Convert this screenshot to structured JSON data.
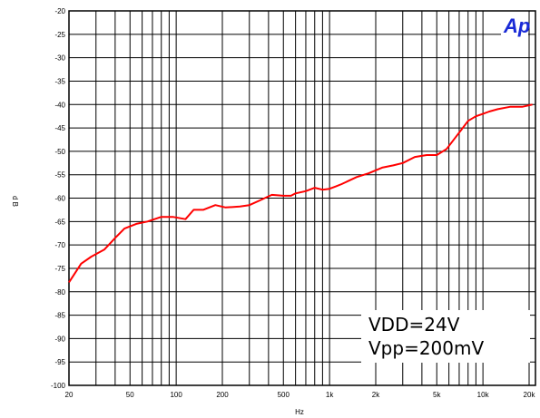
{
  "chart_data": {
    "type": "line",
    "xscale": "log",
    "xlim": [
      20,
      22000
    ],
    "ylim": [
      -100,
      -20
    ],
    "xlabel": "Hz",
    "ylabel": "d B",
    "x_ticks": [
      {
        "value": 20,
        "label": "20"
      },
      {
        "value": 50,
        "label": "50"
      },
      {
        "value": 100,
        "label": "100"
      },
      {
        "value": 200,
        "label": "200"
      },
      {
        "value": 500,
        "label": "500"
      },
      {
        "value": 1000,
        "label": "1k"
      },
      {
        "value": 2000,
        "label": "2k"
      },
      {
        "value": 5000,
        "label": "5k"
      },
      {
        "value": 10000,
        "label": "10k"
      },
      {
        "value": 20000,
        "label": "20k"
      }
    ],
    "y_ticks": [
      -20,
      -25,
      -30,
      -35,
      -40,
      -45,
      -50,
      -55,
      -60,
      -65,
      -70,
      -75,
      -80,
      -85,
      -90,
      -95,
      -100
    ],
    "grid": true,
    "series": [
      {
        "color": "#ff0000",
        "x": [
          20,
          24,
          28,
          34,
          40,
          46,
          55,
          65,
          80,
          95,
          115,
          130,
          150,
          180,
          210,
          260,
          300,
          350,
          420,
          500,
          560,
          600,
          700,
          800,
          900,
          1000,
          1100,
          1200,
          1500,
          1800,
          2200,
          2600,
          3000,
          3600,
          4300,
          5000,
          5800,
          7000,
          8000,
          9000,
          10000,
          11000,
          12500,
          15000,
          18000,
          21000
        ],
        "y": [
          -78,
          -74,
          -72.5,
          -71,
          -68.5,
          -66.5,
          -65.5,
          -65,
          -64,
          -64,
          -64.5,
          -62.5,
          -62.5,
          -61.5,
          -62,
          -61.8,
          -61.5,
          -60.5,
          -59.3,
          -59.5,
          -59.5,
          -59,
          -58.5,
          -57.8,
          -58.2,
          -58,
          -57.5,
          -57,
          -55.5,
          -54.7,
          -53.5,
          -53,
          -52.5,
          -51.2,
          -50.8,
          -50.8,
          -49.5,
          -46,
          -43.5,
          -42.5,
          -42,
          -41.5,
          -41,
          -40.5,
          -40.5,
          -40
        ]
      }
    ],
    "annotations": [
      "VDD=24V",
      "Vpp=200mV"
    ]
  },
  "logo": {
    "text": "Ap",
    "color": "#1a2bd6"
  }
}
